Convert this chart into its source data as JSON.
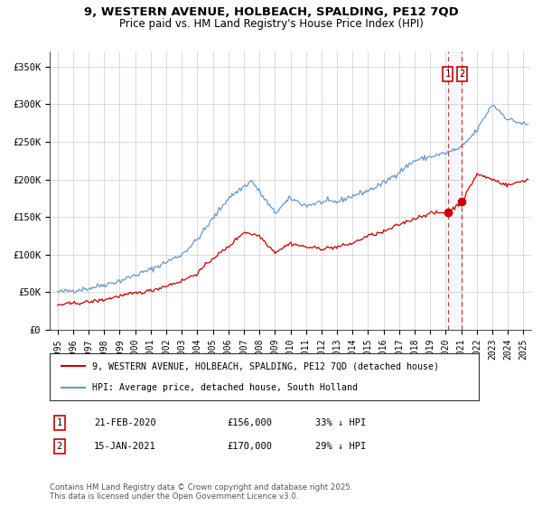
{
  "title_line1": "9, WESTERN AVENUE, HOLBEACH, SPALDING, PE12 7QD",
  "title_line2": "Price paid vs. HM Land Registry's House Price Index (HPI)",
  "ylabel_ticks": [
    "£0",
    "£50K",
    "£100K",
    "£150K",
    "£200K",
    "£250K",
    "£300K",
    "£350K"
  ],
  "ytick_values": [
    0,
    50000,
    100000,
    150000,
    200000,
    250000,
    300000,
    350000
  ],
  "ylim": [
    0,
    370000
  ],
  "xlim_start": 1994.5,
  "xlim_end": 2025.5,
  "legend_line1": "9, WESTERN AVENUE, HOLBEACH, SPALDING, PE12 7QD (detached house)",
  "legend_line2": "HPI: Average price, detached house, South Holland",
  "sale1_label": "1",
  "sale1_date": "21-FEB-2020",
  "sale1_price": "£156,000",
  "sale1_hpi": "33% ↓ HPI",
  "sale2_label": "2",
  "sale2_date": "15-JAN-2021",
  "sale2_price": "£170,000",
  "sale2_hpi": "29% ↓ HPI",
  "footer": "Contains HM Land Registry data © Crown copyright and database right 2025.\nThis data is licensed under the Open Government Licence v3.0.",
  "red_color": "#cc0000",
  "blue_color": "#6699cc",
  "vline_color": "#cc0000",
  "bg_color": "#ffffff",
  "grid_color": "#cccccc",
  "sale1_x": 2020.13,
  "sale2_x": 2021.04,
  "marker1_y": 156000,
  "marker2_y": 170000,
  "hpi_anchors_x": [
    1995,
    1997,
    1999,
    2001,
    2003,
    2004,
    2006,
    2007.5,
    2009,
    2010,
    2011,
    2012,
    2013,
    2014,
    2015,
    2016,
    2017,
    2018,
    2019,
    2020,
    2021,
    2022,
    2023,
    2024,
    2025.3
  ],
  "hpi_anchors_y": [
    50000,
    55000,
    65000,
    80000,
    100000,
    120000,
    175000,
    198000,
    155000,
    175000,
    165000,
    170000,
    170000,
    178000,
    185000,
    195000,
    210000,
    225000,
    230000,
    235000,
    242000,
    265000,
    300000,
    280000,
    272000
  ],
  "prop_anchors_x": [
    1995,
    1996,
    1997,
    1998,
    1999,
    2001,
    2003,
    2004,
    2005,
    2006,
    2007,
    2008,
    2009,
    2010,
    2011,
    2012,
    2013,
    2014,
    2015,
    2016,
    2017,
    2018,
    2019,
    2020.13,
    2021.04,
    2022,
    2023,
    2024,
    2025.3
  ],
  "prop_anchors_y": [
    33000,
    35000,
    37000,
    40000,
    45000,
    52000,
    65000,
    75000,
    95000,
    110000,
    130000,
    125000,
    103000,
    115000,
    110000,
    108000,
    110000,
    115000,
    125000,
    130000,
    140000,
    148000,
    155000,
    156000,
    170000,
    207000,
    200000,
    192000,
    200000
  ]
}
